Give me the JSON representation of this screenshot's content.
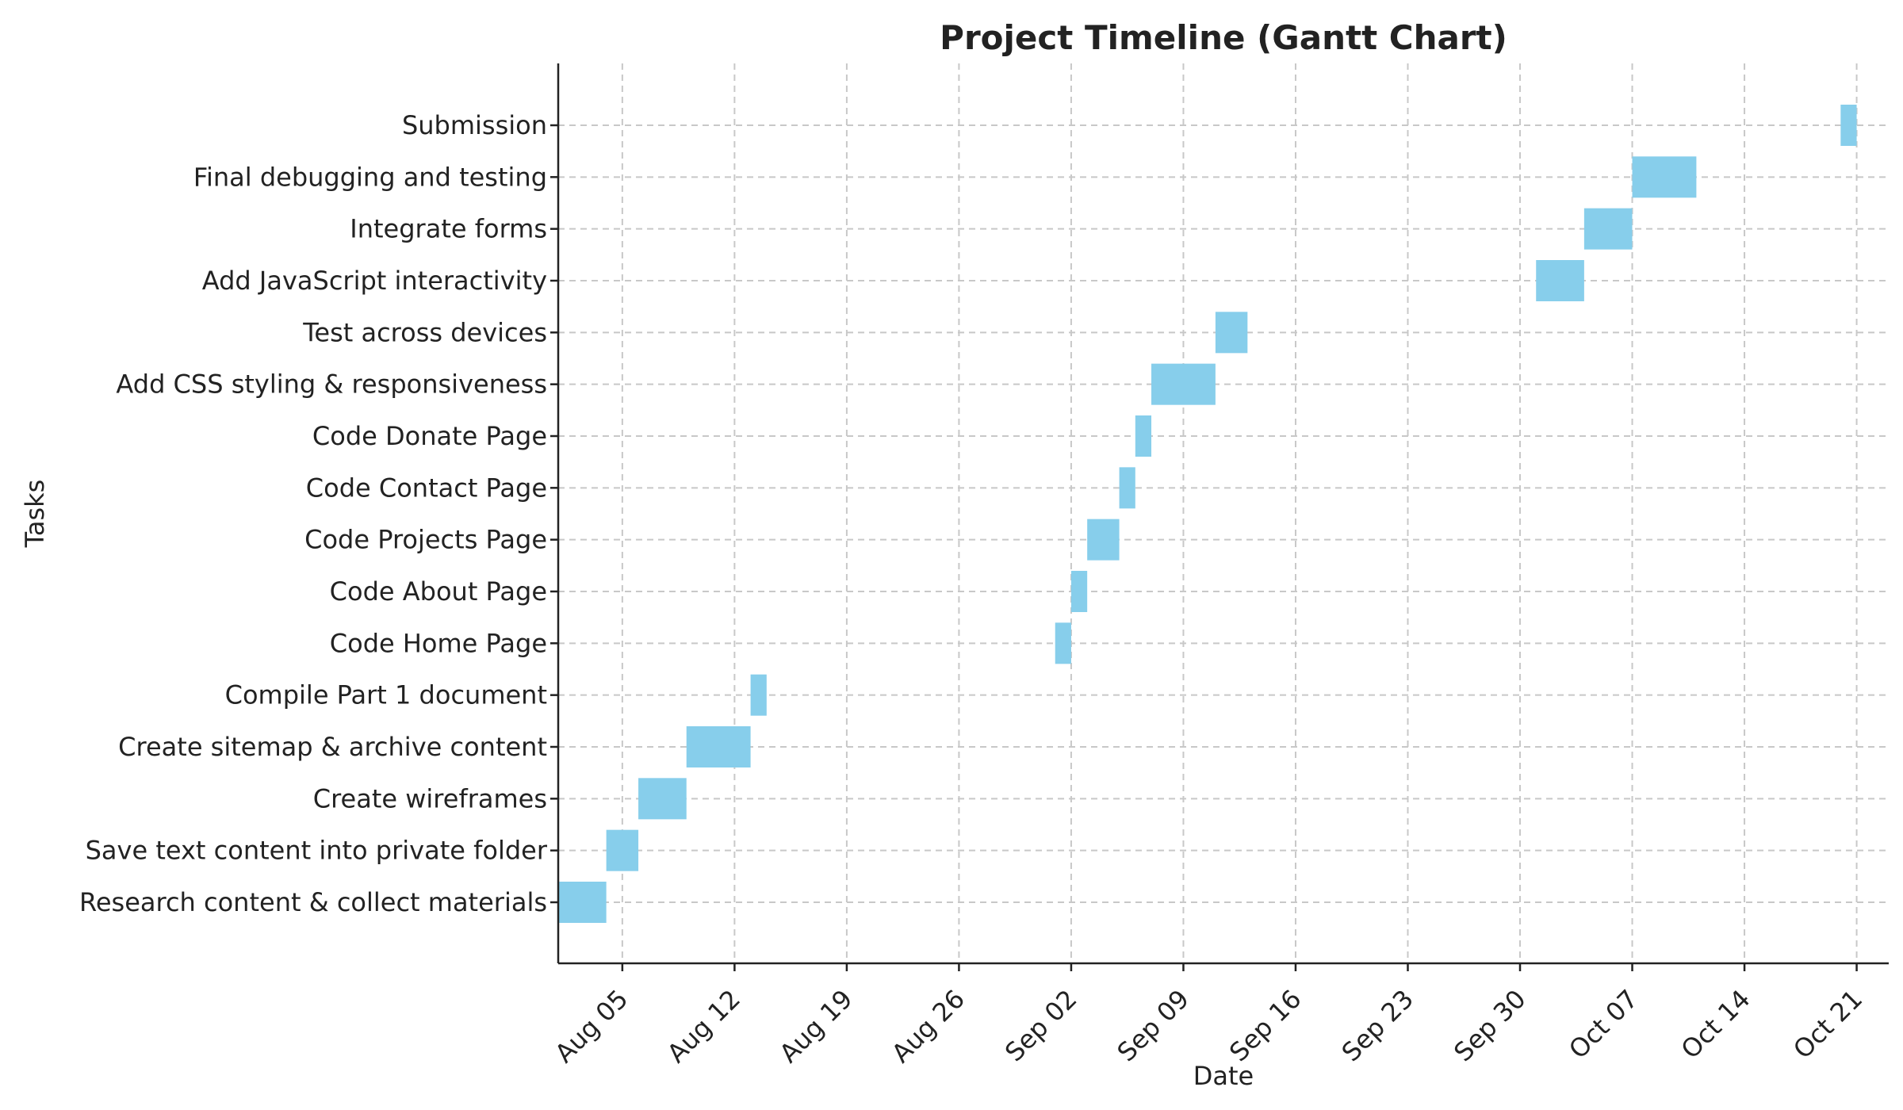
{
  "chart_data": {
    "type": "gantt",
    "title": "Project Timeline (Gantt Chart)",
    "xlabel": "Date",
    "ylabel": "Tasks",
    "bar_color": "#87ceeb",
    "grid": true,
    "x_range": [
      "2024-08-01",
      "2024-10-23"
    ],
    "x_ticks": [
      {
        "date": "2024-08-05",
        "label": "Aug 05"
      },
      {
        "date": "2024-08-12",
        "label": "Aug 12"
      },
      {
        "date": "2024-08-19",
        "label": "Aug 19"
      },
      {
        "date": "2024-08-26",
        "label": "Aug 26"
      },
      {
        "date": "2024-09-02",
        "label": "Sep 02"
      },
      {
        "date": "2024-09-09",
        "label": "Sep 09"
      },
      {
        "date": "2024-09-16",
        "label": "Sep 16"
      },
      {
        "date": "2024-09-23",
        "label": "Sep 23"
      },
      {
        "date": "2024-09-30",
        "label": "Sep 30"
      },
      {
        "date": "2024-10-07",
        "label": "Oct 07"
      },
      {
        "date": "2024-10-14",
        "label": "Oct 14"
      },
      {
        "date": "2024-10-21",
        "label": "Oct 21"
      }
    ],
    "tasks": [
      {
        "name": "Research content & collect materials",
        "start": "2024-08-01",
        "end": "2024-08-04"
      },
      {
        "name": "Save text content into private folder",
        "start": "2024-08-04",
        "end": "2024-08-06"
      },
      {
        "name": "Create wireframes",
        "start": "2024-08-06",
        "end": "2024-08-09"
      },
      {
        "name": "Create sitemap & archive content",
        "start": "2024-08-09",
        "end": "2024-08-13"
      },
      {
        "name": "Compile Part 1 document",
        "start": "2024-08-13",
        "end": "2024-08-14"
      },
      {
        "name": "Code Home Page",
        "start": "2024-09-01",
        "end": "2024-09-02"
      },
      {
        "name": "Code About Page",
        "start": "2024-09-02",
        "end": "2024-09-03"
      },
      {
        "name": "Code Projects Page",
        "start": "2024-09-03",
        "end": "2024-09-05"
      },
      {
        "name": "Code Contact Page",
        "start": "2024-09-05",
        "end": "2024-09-06"
      },
      {
        "name": "Code Donate Page",
        "start": "2024-09-06",
        "end": "2024-09-07"
      },
      {
        "name": "Add CSS styling & responsiveness",
        "start": "2024-09-07",
        "end": "2024-09-11"
      },
      {
        "name": "Test across devices",
        "start": "2024-09-11",
        "end": "2024-09-13"
      },
      {
        "name": "Add JavaScript interactivity",
        "start": "2024-10-01",
        "end": "2024-10-04"
      },
      {
        "name": "Integrate forms",
        "start": "2024-10-04",
        "end": "2024-10-07"
      },
      {
        "name": "Final debugging and testing",
        "start": "2024-10-07",
        "end": "2024-10-11"
      },
      {
        "name": "Submission",
        "start": "2024-10-20",
        "end": "2024-10-21"
      }
    ]
  }
}
